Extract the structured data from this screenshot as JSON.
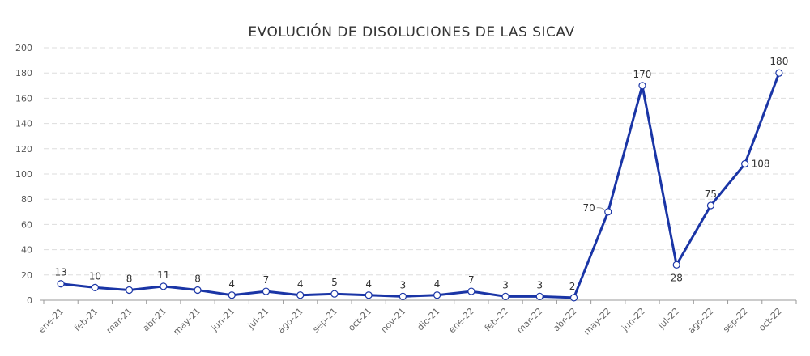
{
  "chart_data": {
    "type": "line",
    "title": "EVOLUCIÓN DE DISOLUCIONES DE LAS SICAV",
    "xlabel": "",
    "ylabel": "",
    "categories": [
      "ene-21",
      "feb-21",
      "mar-21",
      "abr-21",
      "may-21",
      "jun-21",
      "jul-21",
      "ago-21",
      "sep-21",
      "oct-21",
      "nov-21",
      "dic-21",
      "ene-22",
      "feb-22",
      "mar-22",
      "abr-22",
      "may-22",
      "jun-22",
      "jul-22",
      "ago-22",
      "sep-22",
      "oct-22"
    ],
    "values": [
      13,
      10,
      8,
      11,
      8,
      4,
      7,
      4,
      5,
      4,
      3,
      4,
      7,
      3,
      3,
      2,
      70,
      170,
      28,
      75,
      108,
      180
    ],
    "ylim": [
      0,
      200
    ],
    "yticks": [
      "0",
      "20",
      "40",
      "60",
      "80",
      "100",
      "120",
      "140",
      "160",
      "180",
      "200"
    ],
    "grid": true,
    "legend": "none",
    "line_color": "#1a35a6"
  }
}
